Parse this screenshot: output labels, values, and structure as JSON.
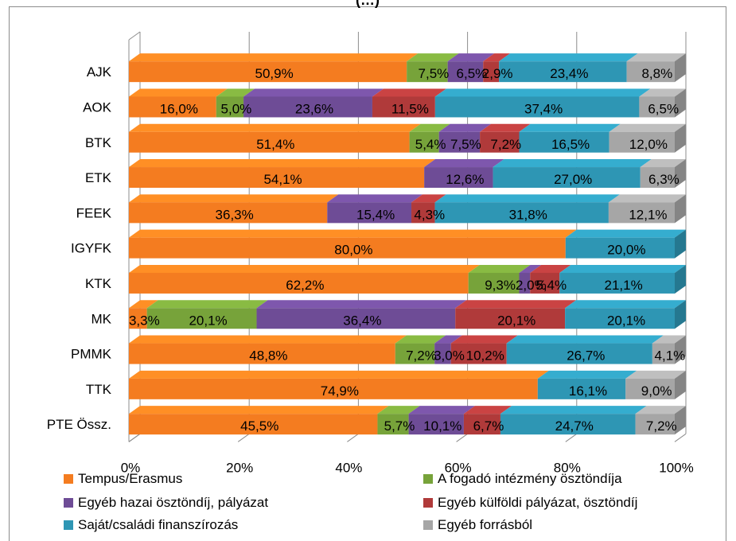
{
  "chart_data": {
    "type": "bar",
    "stacked": "percent",
    "orientation": "horizontal",
    "title_fragment": "(…)",
    "categories": [
      "AJK",
      "AOK",
      "BTK",
      "ETK",
      "FEEK",
      "IGYFK",
      "KTK",
      "MK",
      "PMMK",
      "TTK",
      "PTE Össz."
    ],
    "series": [
      {
        "name": "Tempus/Erasmus",
        "color": "#f47c20",
        "values": [
          50.9,
          16.0,
          51.4,
          54.1,
          36.3,
          80.0,
          62.2,
          3.3,
          48.8,
          74.9,
          45.5
        ],
        "labels": [
          "50,9%",
          "16,0%",
          "51,4%",
          "54,1%",
          "36,3%",
          "80,0%",
          "62,2%",
          "3,3%",
          "48,8%",
          "74,9%",
          "45,5%"
        ]
      },
      {
        "name": "A fogadó intézmény ösztöndíja",
        "color": "#77a33a",
        "values": [
          7.5,
          5.0,
          5.4,
          0,
          0,
          0,
          9.3,
          20.1,
          7.2,
          0,
          5.7
        ],
        "labels": [
          "7,5%",
          "5,0%",
          "5,4%",
          "",
          "",
          "",
          "9,3%",
          "20,1%",
          "7,2%",
          "",
          "5,7%"
        ]
      },
      {
        "name": "Egyéb hazai ösztöndíj, pályázat",
        "color": "#6e4c96",
        "values": [
          6.5,
          23.6,
          7.5,
          12.6,
          15.4,
          0,
          2.0,
          36.4,
          3.0,
          0,
          10.1
        ],
        "labels": [
          "6,5%",
          "23,6%",
          "7,5%",
          "12,6%",
          "15,4%",
          "",
          "2,0%",
          "36,4%",
          "3,0%",
          "",
          "10,1%"
        ]
      },
      {
        "name": "Egyéb külföldi pályázat, ösztöndíj",
        "color": "#b03a3a",
        "values": [
          2.9,
          11.5,
          7.2,
          0,
          4.3,
          0,
          5.4,
          20.1,
          10.2,
          0,
          6.7
        ],
        "labels": [
          "2,9%",
          "11,5%",
          "7,2%",
          "",
          "4,3%",
          "",
          "5,4%",
          "20,1%",
          "10,2%",
          "",
          "6,7%"
        ]
      },
      {
        "name": "Saját/családi finanszírozás",
        "color": "#2e96b4",
        "values": [
          23.4,
          37.4,
          16.5,
          27.0,
          31.8,
          20.0,
          21.1,
          20.1,
          26.7,
          16.1,
          24.7
        ],
        "labels": [
          "23,4%",
          "37,4%",
          "16,5%",
          "27,0%",
          "31,8%",
          "20,0%",
          "21,1%",
          "20,1%",
          "26,7%",
          "16,1%",
          "24,7%"
        ]
      },
      {
        "name": "Egyéb forrásból",
        "color": "#a6a6a6",
        "values": [
          8.8,
          6.5,
          12.0,
          6.3,
          12.1,
          0,
          0,
          0,
          4.1,
          9.0,
          7.2
        ],
        "labels": [
          "8,8%",
          "6,5%",
          "12,0%",
          "6,3%",
          "12,1%",
          "",
          "",
          "",
          "4,1%",
          "9,0%",
          "7,2%"
        ]
      }
    ],
    "x_ticks": [
      "0%",
      "20%",
      "40%",
      "60%",
      "80%",
      "100%"
    ],
    "xlim": [
      0,
      100
    ],
    "grid": true,
    "legend_position": "bottom"
  }
}
